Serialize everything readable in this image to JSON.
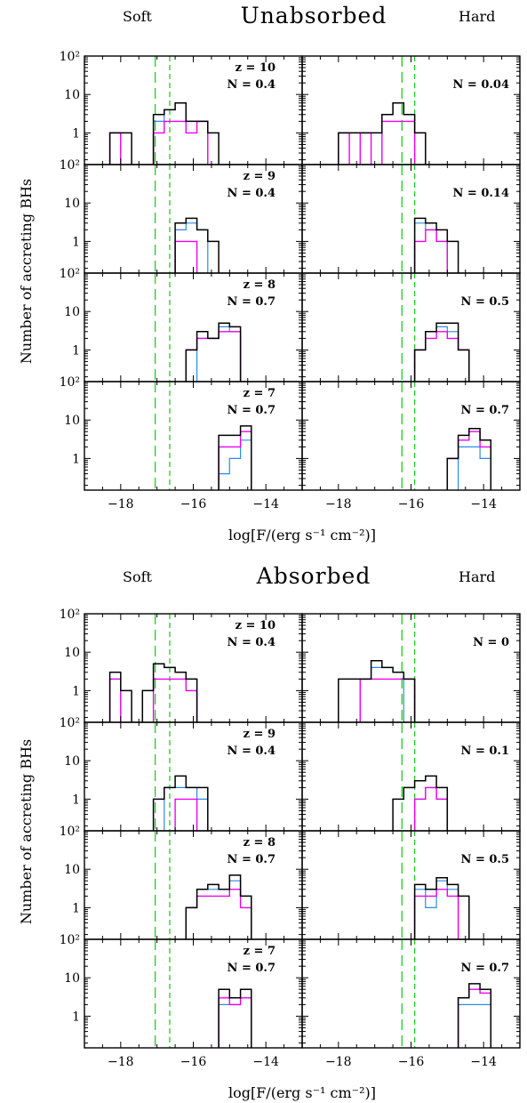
{
  "figure": {
    "xlabel": "log[F/(erg s⁻¹ cm⁻²)]",
    "ylabel": "Number of accreting BHs",
    "x_ticks": [
      "−18",
      "−16",
      "−14"
    ],
    "y_ticks": [
      "10²",
      "10",
      "1"
    ],
    "colors": {
      "total": "#000000",
      "magenta": "#ee00ee",
      "blue": "#2a8ae8",
      "threshold": "#22cc22"
    }
  },
  "panels": [
    {
      "title": "Unabsorbed",
      "left_label": "Soft",
      "right_label": "Hard",
      "rows": [
        {
          "z": "z = 10",
          "n_soft": "N = 0.4",
          "n_hard": "N = 0.04"
        },
        {
          "z": "z = 9",
          "n_soft": "N = 0.4",
          "n_hard": "N = 0.14"
        },
        {
          "z": "z = 8",
          "n_soft": "N = 0.7",
          "n_hard": "N = 0.5"
        },
        {
          "z": "z = 7",
          "n_soft": "N = 0.7",
          "n_hard": "N = 0.7"
        }
      ]
    },
    {
      "title": "Absorbed",
      "left_label": "Soft",
      "right_label": "Hard",
      "rows": [
        {
          "z": "z = 10",
          "n_soft": "N = 0.4",
          "n_hard": "N = 0"
        },
        {
          "z": "z = 9",
          "n_soft": "N = 0.4",
          "n_hard": "N = 0.1"
        },
        {
          "z": "z = 8",
          "n_soft": "N = 0.7",
          "n_hard": "N = 0.5"
        },
        {
          "z": "z = 7",
          "n_soft": "N = 0.7",
          "n_hard": "N = 0.7"
        }
      ]
    }
  ],
  "chart_data": {
    "type": "histogram-grid",
    "xlim": [
      -19,
      -13
    ],
    "ylim": [
      0.15,
      100
    ],
    "yscale": "log",
    "bin_start": -18.6,
    "bin_width": 0.3,
    "threshold_lines": {
      "soft": [
        -17.05,
        -16.65
      ],
      "hard": [
        -16.25,
        -15.9
      ]
    },
    "panels": [
      {
        "name": "Unabsorbed",
        "cells": [
          {
            "band": "soft",
            "z": 10,
            "black": [
              0,
              1,
              1,
              0,
              0,
              3,
              4,
              6,
              2,
              2,
              1,
              0,
              0,
              0,
              0,
              0,
              0,
              0
            ],
            "magenta": [
              0,
              1,
              0,
              0,
              0,
              1,
              2,
              2,
              1,
              2,
              0,
              0,
              0,
              0,
              0,
              0,
              0,
              0
            ],
            "blue": [
              0,
              1,
              0,
              0,
              0,
              2,
              4,
              6,
              2,
              2,
              0,
              0,
              0,
              0,
              0,
              0,
              0,
              0
            ]
          },
          {
            "band": "hard",
            "z": 10,
            "black": [
              0,
              0,
              1,
              1,
              1,
              1,
              3,
              6,
              3,
              1,
              0,
              0,
              0,
              0,
              0,
              0,
              0,
              0
            ],
            "magenta": [
              0,
              0,
              1,
              0,
              1,
              0,
              2,
              2,
              2,
              0,
              0,
              0,
              0,
              0,
              0,
              0,
              0,
              0
            ],
            "blue": [
              0,
              0,
              1,
              1,
              1,
              1,
              3,
              6,
              3,
              1,
              0,
              0,
              0,
              0,
              0,
              0,
              0,
              0
            ]
          },
          {
            "band": "soft",
            "z": 9,
            "black": [
              0,
              0,
              0,
              0,
              0,
              0,
              0,
              3,
              4,
              2,
              1,
              0,
              0,
              0,
              0,
              0,
              0,
              0
            ],
            "magenta": [
              0,
              0,
              0,
              0,
              0,
              0,
              0,
              1,
              1,
              0,
              0,
              0,
              0,
              0,
              0,
              0,
              0,
              0
            ],
            "blue": [
              0,
              0,
              0,
              0,
              0,
              0,
              0,
              2,
              3,
              2,
              0,
              0,
              0,
              0,
              0,
              0,
              0,
              0
            ]
          },
          {
            "band": "hard",
            "z": 9,
            "black": [
              0,
              0,
              0,
              0,
              0,
              0,
              0,
              0,
              0,
              4,
              3,
              2,
              1,
              0,
              0,
              0,
              0,
              0
            ],
            "magenta": [
              0,
              0,
              0,
              0,
              0,
              0,
              0,
              0,
              0,
              1,
              2,
              1,
              0,
              0,
              0,
              0,
              0,
              0
            ],
            "blue": [
              0,
              0,
              0,
              0,
              0,
              0,
              0,
              0,
              0,
              3,
              2,
              1,
              0,
              0,
              0,
              0,
              0,
              0
            ]
          },
          {
            "band": "soft",
            "z": 8,
            "black": [
              0,
              0,
              0,
              0,
              0,
              0,
              0,
              0,
              1,
              3,
              2,
              5,
              4,
              0,
              0,
              0,
              0,
              0
            ],
            "magenta": [
              0,
              0,
              0,
              0,
              0,
              0,
              0,
              0,
              1,
              2,
              2,
              3,
              3,
              0,
              0,
              0,
              0,
              0
            ],
            "blue": [
              0,
              0,
              0,
              0,
              0,
              0,
              0,
              0,
              0,
              2,
              2,
              4,
              3,
              0,
              0,
              0,
              0,
              0
            ]
          },
          {
            "band": "hard",
            "z": 8,
            "black": [
              0,
              0,
              0,
              0,
              0,
              0,
              0,
              0,
              0,
              1,
              3,
              5,
              5,
              1,
              0,
              0,
              0,
              0
            ],
            "magenta": [
              0,
              0,
              0,
              0,
              0,
              0,
              0,
              0,
              0,
              1,
              2,
              3,
              2,
              1,
              0,
              0,
              0,
              0
            ],
            "blue": [
              0,
              0,
              0,
              0,
              0,
              0,
              0,
              0,
              0,
              1,
              3,
              4,
              3,
              1,
              0,
              0,
              0,
              0
            ]
          },
          {
            "band": "soft",
            "z": 7,
            "black": [
              0,
              0,
              0,
              0,
              0,
              0,
              0,
              0,
              0,
              0,
              0,
              4,
              4,
              7,
              0,
              0,
              0,
              0
            ],
            "magenta": [
              0,
              0,
              0,
              0,
              0,
              0,
              0,
              0,
              0,
              0,
              0,
              2,
              2,
              5,
              0,
              0,
              0,
              0
            ],
            "blue": [
              0,
              0,
              0,
              0,
              0,
              0,
              0,
              0,
              0,
              0,
              0,
              0.4,
              1,
              3,
              0,
              0,
              0,
              0
            ]
          },
          {
            "band": "hard",
            "z": 7,
            "black": [
              0,
              0,
              0,
              0,
              0,
              0,
              0,
              0,
              0,
              0,
              0,
              0,
              1,
              4,
              6,
              3,
              0,
              0
            ],
            "magenta": [
              0,
              0,
              0,
              0,
              0,
              0,
              0,
              0,
              0,
              0,
              0,
              0,
              1,
              3,
              5,
              2,
              0,
              0
            ],
            "blue": [
              0,
              0,
              0,
              0,
              0,
              0,
              0,
              0,
              0,
              0,
              0,
              0,
              0,
              2,
              2,
              1,
              0,
              0
            ]
          }
        ]
      },
      {
        "name": "Absorbed",
        "cells": [
          {
            "band": "soft",
            "z": 10,
            "black": [
              0,
              3,
              1,
              0,
              1,
              5,
              4,
              3,
              2,
              0,
              0,
              0,
              0,
              0,
              0,
              0,
              0,
              0
            ],
            "magenta": [
              0,
              2,
              0,
              0,
              0,
              2,
              2,
              2,
              1,
              0,
              0,
              0,
              0,
              0,
              0,
              0,
              0,
              0
            ],
            "blue": [
              0,
              2,
              0,
              0,
              1,
              5,
              4,
              3,
              2,
              0,
              0,
              0,
              0,
              0,
              0,
              0,
              0,
              0
            ]
          },
          {
            "band": "hard",
            "z": 10,
            "black": [
              0,
              0,
              2,
              2,
              2,
              6,
              4,
              3,
              2,
              0,
              0,
              0,
              0,
              0,
              0,
              0,
              0,
              0
            ],
            "magenta": [
              0,
              0,
              0,
              0,
              2,
              2,
              2,
              2,
              2,
              0,
              0,
              0,
              0,
              0,
              0,
              0,
              0,
              0
            ],
            "blue": [
              0,
              0,
              0,
              0,
              2,
              4,
              4,
              3,
              0,
              0,
              0,
              0,
              0,
              0,
              0,
              0,
              0,
              0
            ]
          },
          {
            "band": "soft",
            "z": 9,
            "black": [
              0,
              0,
              0,
              0,
              0,
              1,
              2,
              4,
              2,
              2,
              0,
              0,
              0,
              0,
              0,
              0,
              0,
              0
            ],
            "magenta": [
              0,
              0,
              0,
              0,
              0,
              0,
              0,
              1,
              1,
              0,
              0,
              0,
              0,
              0,
              0,
              0,
              0,
              0
            ],
            "blue": [
              0,
              0,
              0,
              0,
              0,
              0,
              2,
              2,
              2,
              1,
              0,
              0,
              0,
              0,
              0,
              0,
              0,
              0
            ]
          },
          {
            "band": "hard",
            "z": 9,
            "black": [
              0,
              0,
              0,
              0,
              0,
              0,
              0,
              1,
              2,
              3,
              4,
              2,
              0,
              0,
              0,
              0,
              0,
              0
            ],
            "magenta": [
              0,
              0,
              0,
              0,
              0,
              0,
              0,
              0,
              0,
              1,
              2,
              1,
              0,
              0,
              0,
              0,
              0,
              0
            ],
            "blue": [
              0,
              0,
              0,
              0,
              0,
              0,
              0,
              0,
              0,
              1,
              2,
              1,
              0,
              0,
              0,
              0,
              0,
              0
            ]
          },
          {
            "band": "soft",
            "z": 8,
            "black": [
              0,
              0,
              0,
              0,
              0,
              0,
              0,
              0,
              1,
              3,
              4,
              3,
              7,
              2,
              0,
              0,
              0,
              0
            ],
            "magenta": [
              0,
              0,
              0,
              0,
              0,
              0,
              0,
              0,
              1,
              2,
              2,
              2,
              3,
              1,
              0,
              0,
              0,
              0
            ],
            "blue": [
              0,
              0,
              0,
              0,
              0,
              0,
              0,
              0,
              1,
              3,
              3,
              3,
              5,
              2,
              0,
              0,
              0,
              0
            ]
          },
          {
            "band": "hard",
            "z": 8,
            "black": [
              0,
              0,
              0,
              0,
              0,
              0,
              0,
              0,
              0,
              4,
              3,
              6,
              4,
              2,
              0,
              0,
              0,
              0
            ],
            "magenta": [
              0,
              0,
              0,
              0,
              0,
              0,
              0,
              0,
              0,
              2,
              2,
              3,
              2,
              0,
              0,
              0,
              0,
              0
            ],
            "blue": [
              0,
              0,
              0,
              0,
              0,
              0,
              0,
              0,
              0,
              3,
              1,
              5,
              3,
              0,
              0,
              0,
              0,
              0
            ]
          },
          {
            "band": "soft",
            "z": 7,
            "black": [
              0,
              0,
              0,
              0,
              0,
              0,
              0,
              0,
              0,
              0,
              0,
              5,
              3,
              5,
              0,
              0,
              0,
              0
            ],
            "magenta": [
              0,
              0,
              0,
              0,
              0,
              0,
              0,
              0,
              0,
              0,
              0,
              3,
              2,
              3,
              0,
              0,
              0,
              0
            ],
            "blue": [
              0,
              0,
              0,
              0,
              0,
              0,
              0,
              0,
              0,
              0,
              0,
              2,
              2,
              3,
              0,
              0,
              0,
              0
            ]
          },
          {
            "band": "hard",
            "z": 7,
            "black": [
              0,
              0,
              0,
              0,
              0,
              0,
              0,
              0,
              0,
              0,
              0,
              0,
              0,
              3,
              7,
              5,
              0,
              0
            ],
            "magenta": [
              0,
              0,
              0,
              0,
              0,
              0,
              0,
              0,
              0,
              0,
              0,
              0,
              0,
              3,
              5,
              4,
              0,
              0
            ],
            "blue": [
              0,
              0,
              0,
              0,
              0,
              0,
              0,
              0,
              0,
              0,
              0,
              0,
              0,
              2,
              2,
              2,
              0,
              0
            ]
          }
        ]
      }
    ]
  }
}
